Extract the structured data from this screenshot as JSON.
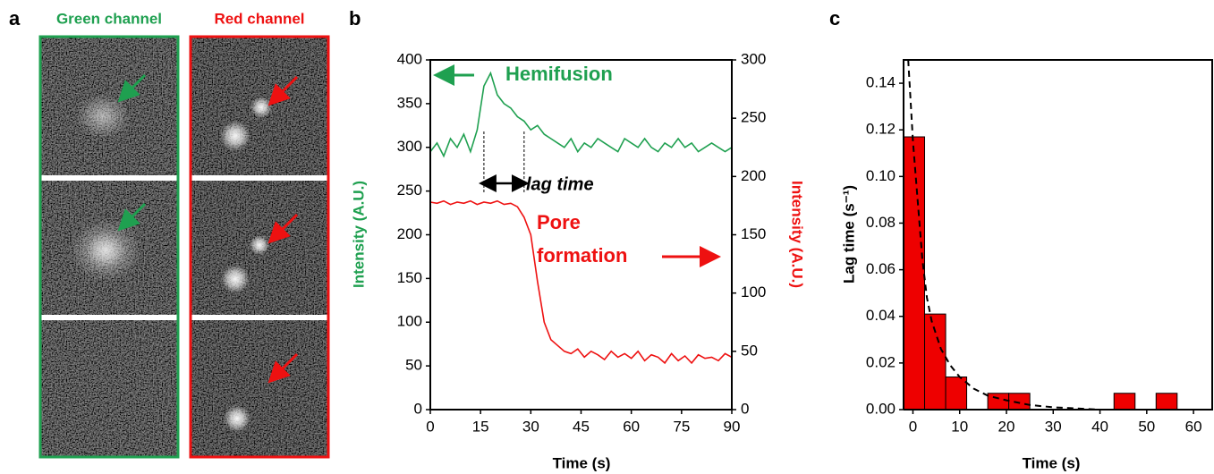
{
  "panel_labels": [
    "a",
    "b",
    "c"
  ],
  "panel_a": {
    "titles": [
      "Green channel",
      "Red channel"
    ]
  },
  "chart_data": [
    {
      "type": "line",
      "x_label": "Time (s)",
      "y_label": "Intensity (A.U.)",
      "y2_label": "Intensity (A.U.)",
      "annotations": [
        "Hemifusion",
        "lag time",
        "Pore",
        "formation"
      ],
      "lag_marks": [
        16,
        28
      ],
      "xlim": [
        0,
        90
      ],
      "xticks": [
        0,
        15,
        30,
        45,
        60,
        75,
        90
      ],
      "ylim": [
        0,
        400
      ],
      "yticks": [
        0,
        50,
        100,
        150,
        200,
        250,
        300,
        350,
        400
      ],
      "y2lim": [
        0,
        300
      ],
      "y2ticks": [
        0,
        50,
        100,
        150,
        200,
        250,
        300
      ],
      "x": [
        0,
        2,
        4,
        6,
        8,
        10,
        12,
        14,
        16,
        18,
        20,
        22,
        24,
        26,
        28,
        30,
        32,
        34,
        36,
        38,
        40,
        42,
        44,
        46,
        48,
        50,
        52,
        54,
        56,
        58,
        60,
        62,
        64,
        66,
        68,
        70,
        72,
        74,
        76,
        78,
        80,
        82,
        84,
        86,
        88,
        90
      ],
      "series": [
        {
          "color": "#1fa050",
          "axis": "y",
          "values": [
            295,
            305,
            290,
            310,
            300,
            315,
            295,
            320,
            370,
            385,
            360,
            350,
            345,
            335,
            330,
            320,
            325,
            315,
            310,
            305,
            300,
            310,
            295,
            305,
            300,
            310,
            305,
            300,
            295,
            310,
            305,
            300,
            310,
            300,
            295,
            305,
            300,
            310,
            300,
            305,
            295,
            300,
            305,
            300,
            295,
            300
          ]
        },
        {
          "color": "#ee1111",
          "axis": "y2",
          "values": [
            178,
            177,
            179,
            176,
            178,
            177,
            179,
            176,
            178,
            177,
            179,
            176,
            177,
            174,
            165,
            150,
            110,
            75,
            60,
            55,
            50,
            48,
            52,
            45,
            50,
            47,
            43,
            50,
            45,
            48,
            44,
            50,
            42,
            47,
            45,
            40,
            48,
            42,
            46,
            40,
            47,
            44,
            45,
            42,
            48,
            45
          ]
        }
      ]
    },
    {
      "type": "histogram",
      "x_label": "Time (s)",
      "y_label": "Lag time (s⁻¹)",
      "color": "#ee0000",
      "bins": [
        -2,
        2.5,
        7,
        11.5,
        16,
        20.5,
        25,
        29.5,
        34,
        38.5,
        43,
        47.5,
        52,
        56.5
      ],
      "values": [
        0.117,
        0.041,
        0.014,
        0,
        0.007,
        0.007,
        0,
        0,
        0,
        0,
        0.007,
        0,
        0.007
      ],
      "fit": {
        "x": [
          -1,
          0,
          1,
          2,
          3,
          4,
          6,
          8,
          10,
          13,
          16,
          20,
          25,
          30,
          40,
          50,
          60,
          64
        ],
        "values": [
          0.15,
          0.115,
          0.09,
          0.065,
          0.048,
          0.038,
          0.026,
          0.019,
          0.014,
          0.009,
          0.006,
          0.004,
          0.002,
          0.001,
          0,
          0,
          0,
          0
        ]
      },
      "xlim": [
        -2,
        64
      ],
      "xticks": [
        0,
        10,
        20,
        30,
        40,
        50,
        60
      ],
      "ylim": [
        0,
        0.15
      ],
      "yticks": [
        {
          "value": 0,
          "label": "0.00"
        },
        {
          "value": 0.02,
          "label": "0.02"
        },
        {
          "value": 0.04,
          "label": "0.04"
        },
        {
          "value": 0.06,
          "label": "0.06"
        },
        {
          "value": 0.08,
          "label": "0.08"
        },
        {
          "value": 0.1,
          "label": "0.10"
        },
        {
          "value": 0.12,
          "label": "0.12"
        },
        {
          "value": 0.14,
          "label": "0.14"
        }
      ]
    }
  ]
}
